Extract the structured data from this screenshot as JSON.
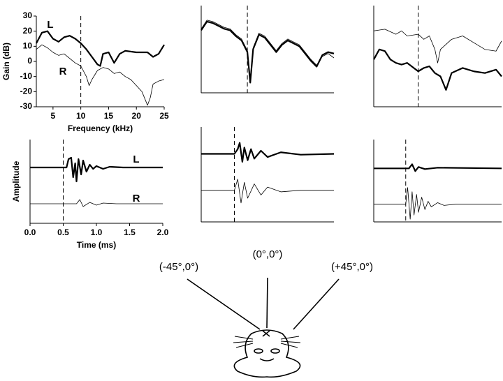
{
  "chart_data": [
    {
      "type": "line",
      "ylabel": "Gain (dB)",
      "xlabel": "Frequency (kHz)",
      "xlim": [
        2,
        25
      ],
      "ylim": [
        -30,
        30
      ],
      "xticks": [
        5,
        10,
        15,
        20,
        25
      ],
      "yticks": [
        30,
        20,
        10,
        0,
        -10,
        -20,
        -30
      ],
      "vline": 10,
      "series": [
        {
          "name": "L",
          "color": "#000000",
          "line_width": 2.2,
          "x": [
            2,
            3,
            4,
            5,
            6,
            7,
            8,
            9,
            10,
            11,
            12,
            13,
            13.5,
            14,
            15,
            16,
            17,
            18,
            20,
            22,
            23,
            24,
            25
          ],
          "values": [
            12,
            19,
            20,
            15,
            13,
            16,
            17,
            15,
            12,
            8,
            3,
            -2,
            -3,
            5,
            6,
            -1,
            5,
            7,
            6,
            6,
            3,
            5,
            11
          ]
        },
        {
          "name": "R",
          "color": "#000000",
          "line_width": 0.8,
          "x": [
            2,
            3,
            4,
            5,
            6,
            7,
            8,
            9,
            10,
            11,
            11.5,
            12,
            13,
            14,
            15,
            16,
            17,
            18,
            19,
            20,
            21,
            22,
            22.5,
            23,
            24,
            25
          ],
          "values": [
            8,
            11,
            9,
            6,
            4,
            5,
            2,
            -1,
            -3,
            -10,
            -16,
            -12,
            -6,
            -4,
            -5,
            -8,
            -7,
            -10,
            -12,
            -16,
            -20,
            -29,
            -24,
            -15,
            -13,
            -12
          ]
        }
      ]
    },
    {
      "type": "line",
      "xlim": [
        2,
        25
      ],
      "ylim": [
        -30,
        30
      ],
      "vline": 10,
      "series": [
        {
          "color": "#000000",
          "line_width": 2.2,
          "x": [
            2,
            3,
            4,
            5,
            6,
            7,
            8,
            9,
            10,
            10.5,
            11,
            12,
            13,
            14,
            15,
            16,
            17,
            18,
            19,
            20,
            21,
            22,
            23,
            24,
            25
          ],
          "values": [
            13,
            19,
            18,
            16,
            14,
            13,
            9,
            6,
            -2,
            -23,
            0,
            10,
            8,
            3,
            -2,
            3,
            6,
            4,
            2,
            -3,
            -8,
            -12,
            -4,
            -2,
            -3
          ]
        },
        {
          "color": "#000000",
          "line_width": 0.8,
          "x": [
            2,
            3,
            4,
            5,
            6,
            7,
            8,
            9,
            10,
            10.5,
            11,
            12,
            13,
            14,
            15,
            16,
            17,
            18,
            19,
            20,
            21,
            22,
            23,
            24,
            25
          ],
          "values": [
            14,
            20,
            19,
            17,
            15,
            14,
            10,
            7,
            -1,
            -21,
            1,
            11,
            9,
            4,
            -1,
            4,
            7,
            5,
            3,
            -2,
            -7,
            -11,
            -5,
            -3,
            -6
          ]
        }
      ]
    },
    {
      "type": "line",
      "xlim": [
        2,
        25
      ],
      "ylim": [
        -30,
        30
      ],
      "vline": 10,
      "series": [
        {
          "color": "#000000",
          "line_width": 2.2,
          "x": [
            2,
            3,
            4,
            5,
            6,
            7,
            8,
            10,
            11,
            12,
            13,
            14,
            15,
            16,
            18,
            20,
            22,
            24,
            25
          ],
          "values": [
            -2,
            4,
            3,
            -2,
            -4,
            -5,
            -4,
            -9,
            -7,
            -6,
            -10,
            -12,
            -20,
            -10,
            -7,
            -9,
            -10,
            -8,
            -12
          ]
        },
        {
          "color": "#000000",
          "line_width": 0.8,
          "x": [
            2,
            4,
            6,
            7,
            8,
            10,
            11,
            12,
            13,
            13.5,
            14,
            16,
            18,
            20,
            22,
            24,
            25
          ],
          "values": [
            15,
            16,
            13,
            15,
            12,
            13,
            10,
            12,
            4,
            -4,
            4,
            10,
            12,
            8,
            4,
            3,
            9
          ]
        }
      ]
    },
    {
      "type": "line",
      "ylabel": "Amplitude",
      "xlabel": "Time (ms)",
      "xlim": [
        0,
        2
      ],
      "ylim": [
        -3,
        3
      ],
      "vline": 0.5,
      "xticks": [
        {
          "value": 0,
          "label": "0.0"
        },
        {
          "value": 0.5,
          "label": "0.5"
        },
        {
          "value": 1,
          "label": "1.0"
        },
        {
          "value": 1.5,
          "label": "1.5"
        },
        {
          "value": 2,
          "label": "2.0"
        }
      ],
      "series": [
        {
          "name": "L",
          "color": "#000000",
          "line_width": 2.2,
          "x": [
            0,
            0.55,
            0.58,
            0.62,
            0.65,
            0.68,
            0.7,
            0.73,
            0.77,
            0.8,
            0.85,
            0.9,
            0.95,
            1.0,
            1.1,
            1.2,
            1.4,
            2.0
          ],
          "values": [
            1,
            1,
            1.6,
            1.7,
            0.3,
            1.3,
            0,
            1.6,
            0.5,
            1.5,
            0.7,
            1.2,
            0.9,
            1.1,
            0.9,
            1.05,
            1,
            1
          ]
        },
        {
          "name": "R",
          "color": "#000000",
          "line_width": 0.8,
          "x": [
            0,
            0.7,
            0.75,
            0.8,
            0.9,
            1.0,
            1.1,
            1.3,
            2.0
          ],
          "values": [
            -1.6,
            -1.6,
            -1.3,
            -1.8,
            -1.5,
            -1.7,
            -1.55,
            -1.6,
            -1.6
          ]
        }
      ]
    },
    {
      "type": "line",
      "xlim": [
        0,
        2
      ],
      "ylim": [
        -3,
        3
      ],
      "vline": 0.5,
      "series": [
        {
          "color": "#000000",
          "line_width": 2.2,
          "x": [
            0,
            0.5,
            0.55,
            0.58,
            0.62,
            0.65,
            0.7,
            0.75,
            0.8,
            0.9,
            1.0,
            1.2,
            1.5,
            2
          ],
          "values": [
            1.3,
            1.3,
            1.6,
            2.0,
            0.8,
            1.7,
            0.9,
            1.6,
            1.0,
            1.5,
            1.1,
            1.4,
            1.25,
            1.3
          ]
        },
        {
          "color": "#000000",
          "line_width": 0.8,
          "x": [
            0,
            0.5,
            0.55,
            0.6,
            0.65,
            0.7,
            0.8,
            0.9,
            1.0,
            1.2,
            1.5,
            2
          ],
          "values": [
            -1,
            -1,
            -0.3,
            -1.8,
            -0.5,
            -1.5,
            -0.6,
            -1.3,
            -0.8,
            -1.1,
            -1,
            -1
          ]
        }
      ]
    },
    {
      "type": "line",
      "xlim": [
        0,
        2
      ],
      "ylim": [
        -3,
        3
      ],
      "vline": 0.5,
      "series": [
        {
          "color": "#000000",
          "line_width": 2.2,
          "x": [
            0,
            0.55,
            0.6,
            0.65,
            0.7,
            0.8,
            1,
            2
          ],
          "values": [
            0.9,
            0.9,
            1.2,
            0.7,
            1.0,
            0.85,
            0.95,
            0.9
          ]
        },
        {
          "color": "#000000",
          "line_width": 0.8,
          "x": [
            0,
            0.5,
            0.53,
            0.57,
            0.6,
            0.63,
            0.67,
            0.7,
            0.75,
            0.8,
            0.85,
            0.9,
            1.0,
            1.1,
            1.3,
            2
          ],
          "values": [
            -1.7,
            -1.7,
            -0.5,
            -2.8,
            -0.8,
            -2.5,
            -1.0,
            -2.3,
            -1.2,
            -2.1,
            -1.5,
            -1.9,
            -1.6,
            -1.8,
            -1.7,
            -1.7
          ]
        }
      ]
    }
  ],
  "directions": [
    "(-45°,0°)",
    "(0°,0°)",
    "(+45°,0°)"
  ]
}
